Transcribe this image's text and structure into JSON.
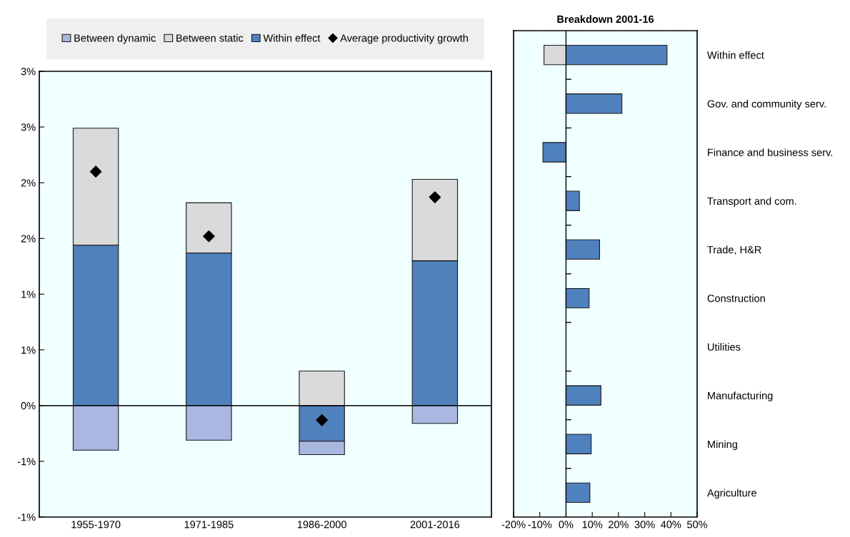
{
  "chart_data": [
    {
      "type": "bar",
      "stacked": true,
      "categories": [
        "1955-1970",
        "1971-1985",
        "1986-2000",
        "2001-2016"
      ],
      "series": [
        {
          "name": "Within effect",
          "color": "#4f81bd",
          "values": [
            1.44,
            1.37,
            -0.32,
            1.3
          ]
        },
        {
          "name": "Between static",
          "color": "#dadada",
          "values": [
            1.05,
            0.45,
            0.31,
            0.73
          ]
        },
        {
          "name": "Between dynamic",
          "color": "#a9b8e0",
          "values": [
            -0.4,
            -0.31,
            -0.12,
            -0.16
          ]
        },
        {
          "name": "Average productivity growth",
          "type": "scatter",
          "marker": "diamond",
          "color": "#000000",
          "x": [
            "1955-1970",
            "1971-1985",
            "1986-2000",
            "2001-2016"
          ],
          "values": [
            2.1,
            1.52,
            -0.13,
            1.87
          ]
        }
      ],
      "ylim": [
        -1,
        3
      ],
      "yticks": [
        {
          "value": -1,
          "label": "-1%"
        },
        {
          "value": -0.5,
          "label": "-1%"
        },
        {
          "value": 0,
          "label": "0%"
        },
        {
          "value": 0.5,
          "label": "1%"
        },
        {
          "value": 1,
          "label": "1%"
        },
        {
          "value": 1.5,
          "label": "2%"
        },
        {
          "value": 2,
          "label": "2%"
        },
        {
          "value": 2.5,
          "label": "3%"
        },
        {
          "value": 3,
          "label": "3%"
        }
      ],
      "legend": "top",
      "grid": false,
      "ref_lines": [
        {
          "axis": "y",
          "value": 0
        }
      ]
    },
    {
      "type": "bar",
      "stacked": true,
      "orientation": "horizontal",
      "title": "Breakdown 2001-16",
      "categories": [
        "Within effect",
        "Gov. and community serv.",
        "Finance and business serv.",
        "Transport and com.",
        "Trade, H&R",
        "Construction",
        "Utilities",
        "Manufacturing",
        "Mining",
        "Agriculture"
      ],
      "series": [
        {
          "color": "#4f81bd",
          "values": [
            38.5,
            21.3,
            -8.8,
            5.1,
            12.8,
            8.8,
            null,
            13.3,
            9.6,
            9.1
          ]
        },
        {
          "color": "#dadada",
          "values": [
            -8.4,
            null,
            null,
            null,
            null,
            null,
            null,
            null,
            null,
            null
          ]
        }
      ],
      "xlim": [
        -20,
        50
      ],
      "xticks": [
        {
          "value": -20,
          "label": "-20%"
        },
        {
          "value": -10,
          "label": "-10%"
        },
        {
          "value": 0,
          "label": "0%"
        },
        {
          "value": 10,
          "label": "10%"
        },
        {
          "value": 20,
          "label": "20%"
        },
        {
          "value": 30,
          "label": "30%"
        },
        {
          "value": 40,
          "label": "40%"
        },
        {
          "value": 50,
          "label": "50%"
        }
      ],
      "grid": "x",
      "ref_lines": [
        {
          "axis": "x",
          "value": 0
        }
      ]
    }
  ]
}
